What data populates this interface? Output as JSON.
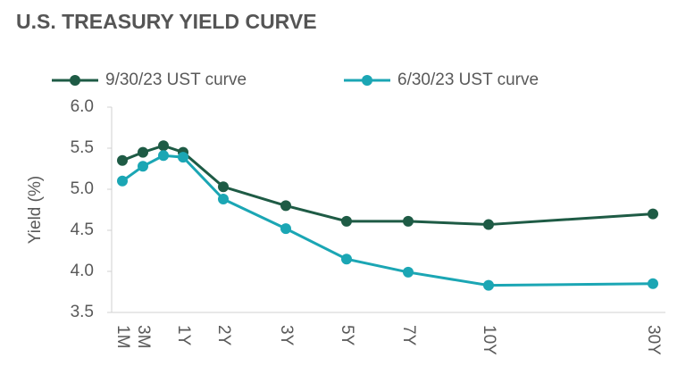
{
  "chart_data": {
    "type": "line",
    "title": "U.S. TREASURY YIELD CURVE",
    "y_label": "Yield (%)",
    "categories": [
      "1M",
      "3M",
      null,
      "1Y",
      "2Y",
      "3Y",
      "5Y",
      "7Y",
      "10Y",
      "30Y"
    ],
    "series": [
      {
        "name": "9/30/23 UST curve",
        "color": "#1e5b45",
        "values": [
          5.35,
          5.45,
          5.53,
          5.45,
          5.03,
          4.8,
          4.61,
          4.61,
          4.57,
          4.7
        ]
      },
      {
        "name": "6/30/23 UST curve",
        "color": "#1ba6b4",
        "values": [
          5.1,
          5.28,
          5.41,
          5.39,
          4.88,
          4.52,
          4.15,
          3.99,
          3.83,
          3.85
        ]
      }
    ],
    "ylim": [
      3.5,
      6.0
    ],
    "yticks": [
      {
        "value": 3.5,
        "label": "3.5"
      },
      {
        "value": 4,
        "label": "4.0"
      },
      {
        "value": 4.5,
        "label": "4.5"
      },
      {
        "value": 5,
        "label": "5.0"
      },
      {
        "value": 5.5,
        "label": "5.5"
      },
      {
        "value": 6,
        "label": "6.0"
      }
    ],
    "grid": false,
    "legend": "top"
  }
}
